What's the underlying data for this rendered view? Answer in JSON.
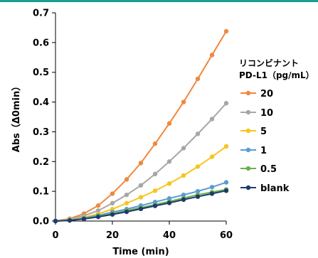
{
  "chart_data": {
    "type": "line",
    "xlabel": "Time (min)",
    "ylabel": "Abs（Δ0min）",
    "xlim": [
      0,
      60
    ],
    "ylim": [
      0,
      0.7
    ],
    "xticks": [
      "0",
      "20",
      "40",
      "60"
    ],
    "yticks": [
      "0.0",
      "0.1",
      "0.2",
      "0.3",
      "0.4",
      "0.5",
      "0.6",
      "0.7"
    ],
    "grid": false,
    "legend_position": "right",
    "legend_title": [
      "リコンビナント",
      "PD-L1（pg/mL）"
    ],
    "x": [
      0,
      5,
      10,
      15,
      20,
      25,
      30,
      35,
      40,
      45,
      50,
      55,
      60
    ],
    "series": [
      {
        "name": "20",
        "color": "#f0883e",
        "values": [
          0.0,
          0.008,
          0.025,
          0.052,
          0.092,
          0.14,
          0.195,
          0.26,
          0.328,
          0.4,
          0.478,
          0.558,
          0.638
        ]
      },
      {
        "name": "10",
        "color": "#a6a6a6",
        "values": [
          0.0,
          0.006,
          0.018,
          0.035,
          0.06,
          0.088,
          0.12,
          0.158,
          0.2,
          0.245,
          0.293,
          0.343,
          0.396
        ]
      },
      {
        "name": "5",
        "color": "#f7c520",
        "values": [
          0.0,
          0.004,
          0.012,
          0.024,
          0.04,
          0.06,
          0.08,
          0.102,
          0.126,
          0.153,
          0.183,
          0.216,
          0.251
        ]
      },
      {
        "name": "1",
        "color": "#5a9bd5",
        "values": [
          0.0,
          0.003,
          0.01,
          0.019,
          0.03,
          0.04,
          0.052,
          0.064,
          0.076,
          0.088,
          0.1,
          0.114,
          0.13
        ]
      },
      {
        "name": "0.5",
        "color": "#6ab04c",
        "values": [
          0.0,
          0.002,
          0.008,
          0.016,
          0.025,
          0.035,
          0.045,
          0.055,
          0.066,
          0.077,
          0.088,
          0.097,
          0.106
        ]
      },
      {
        "name": "blank",
        "color": "#1f3b6e",
        "values": [
          0.0,
          0.002,
          0.007,
          0.014,
          0.022,
          0.031,
          0.041,
          0.051,
          0.061,
          0.072,
          0.082,
          0.092,
          0.102
        ]
      }
    ]
  }
}
